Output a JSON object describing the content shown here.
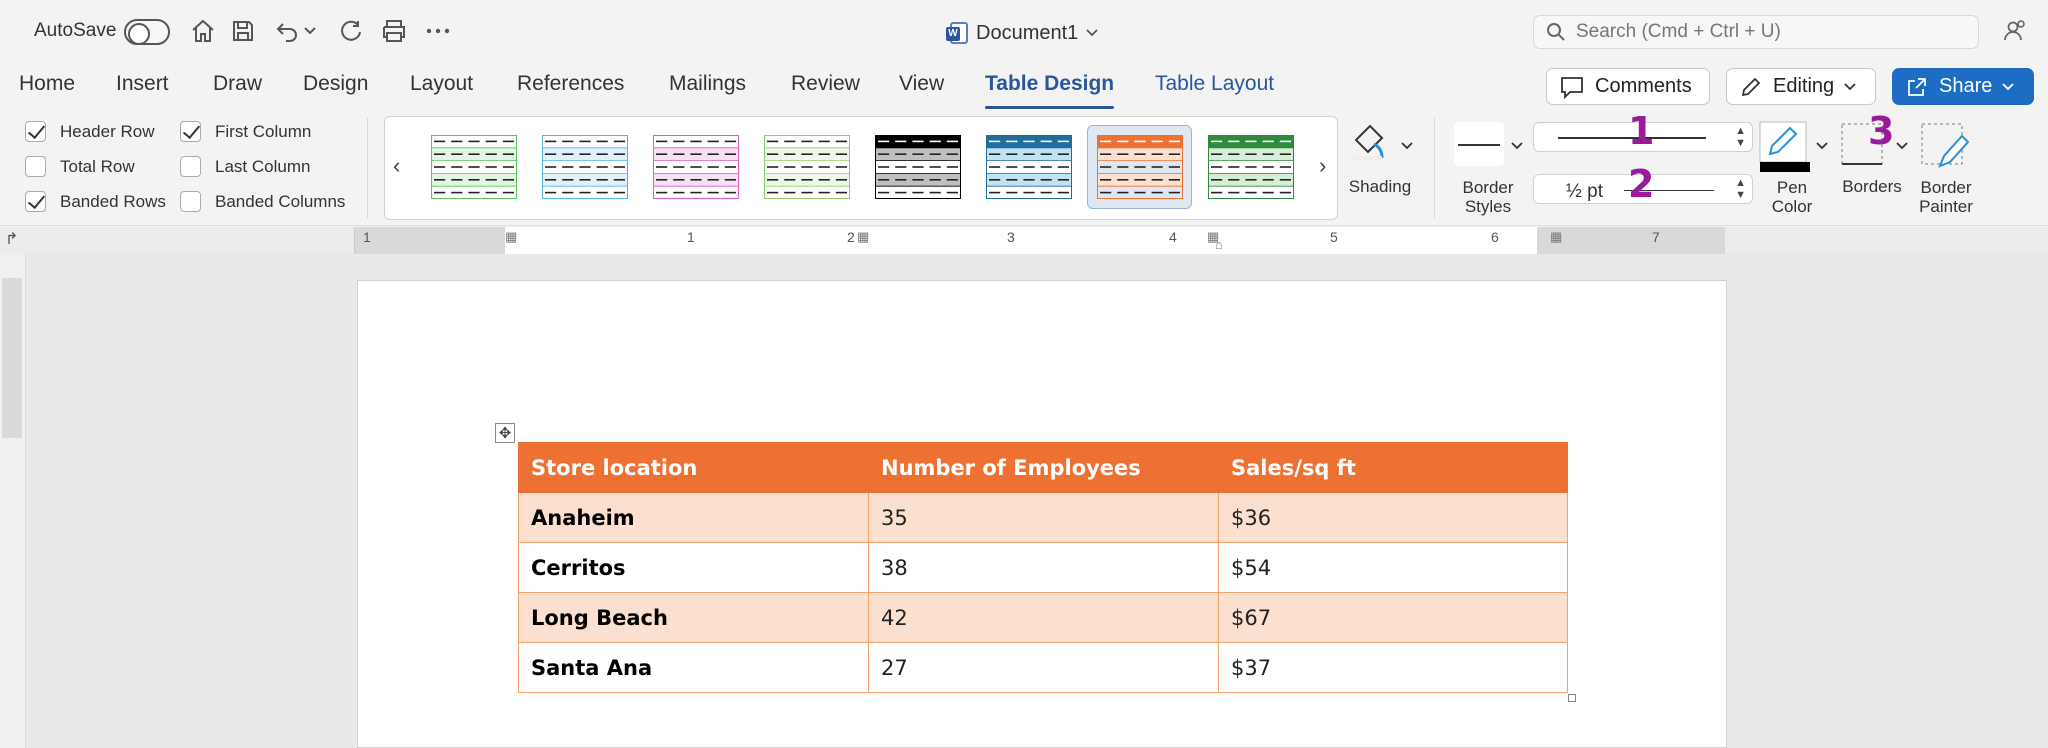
{
  "titlebar": {
    "autosave_label": "AutoSave",
    "doc_title": "Document1",
    "search_placeholder": "Search (Cmd + Ctrl + U)"
  },
  "menu": {
    "tabs": [
      {
        "label": "Home"
      },
      {
        "label": "Insert"
      },
      {
        "label": "Draw"
      },
      {
        "label": "Design"
      },
      {
        "label": "Layout"
      },
      {
        "label": "References"
      },
      {
        "label": "Mailings"
      },
      {
        "label": "Review"
      },
      {
        "label": "View"
      },
      {
        "label": "Table Design",
        "active": true
      },
      {
        "label": "Table Layout"
      }
    ],
    "comments_label": "Comments",
    "editing_label": "Editing",
    "share_label": "Share"
  },
  "ribbon": {
    "options": [
      {
        "label": "Header Row",
        "checked": true
      },
      {
        "label": "Total Row",
        "checked": false
      },
      {
        "label": "Banded Rows",
        "checked": true
      },
      {
        "label": "First Column",
        "checked": true
      },
      {
        "label": "Last Column",
        "checked": false
      },
      {
        "label": "Banded Columns",
        "checked": false
      }
    ],
    "table_styles": [
      {
        "color": "#5cc45c",
        "fill": "#e2f5e2"
      },
      {
        "color": "#56b4e0",
        "fill": "#e0f1fa"
      },
      {
        "color": "#d760c8",
        "fill": "#f7e0f3"
      },
      {
        "color": "#8ccf6a",
        "fill": "#eef8e8"
      },
      {
        "color": "#000000",
        "fill": "#bfbfbf",
        "header": "#000000"
      },
      {
        "color": "#1f6e9e",
        "fill": "#bfe3f5",
        "header": "#1f6e9e"
      },
      {
        "color": "#ed7132",
        "fill": "#fbdfcf",
        "header": "#ed7132",
        "selected": true
      },
      {
        "color": "#2e8b3a",
        "fill": "#d5efd7",
        "header": "#2e8b3a"
      }
    ],
    "shading_label": "Shading",
    "border_styles_label": "Border\nStyles",
    "pen_weight": "½ pt",
    "pen_color_label": "Pen\nColor",
    "borders_label": "Borders",
    "border_painter_label": "Border\nPainter",
    "annotations": [
      "1",
      "2",
      "3"
    ],
    "accent_color": "#2b579a",
    "annotation_color": "#9b1a9b"
  },
  "ruler": {
    "labels": [
      "1",
      "1",
      "2",
      "3",
      "4",
      "5",
      "6",
      "7"
    ]
  },
  "document": {
    "table": {
      "headers": [
        "Store location",
        "Number of Employees",
        "Sales/sq ft"
      ],
      "rows": [
        [
          "Anaheim",
          "35",
          "$36"
        ],
        [
          "Cerritos",
          "38",
          "$54"
        ],
        [
          "Long Beach",
          "42",
          "$67"
        ],
        [
          "Santa Ana",
          "27",
          "$37"
        ]
      ],
      "header_color": "#ed7132",
      "band_color": "#fbdfcf"
    }
  }
}
